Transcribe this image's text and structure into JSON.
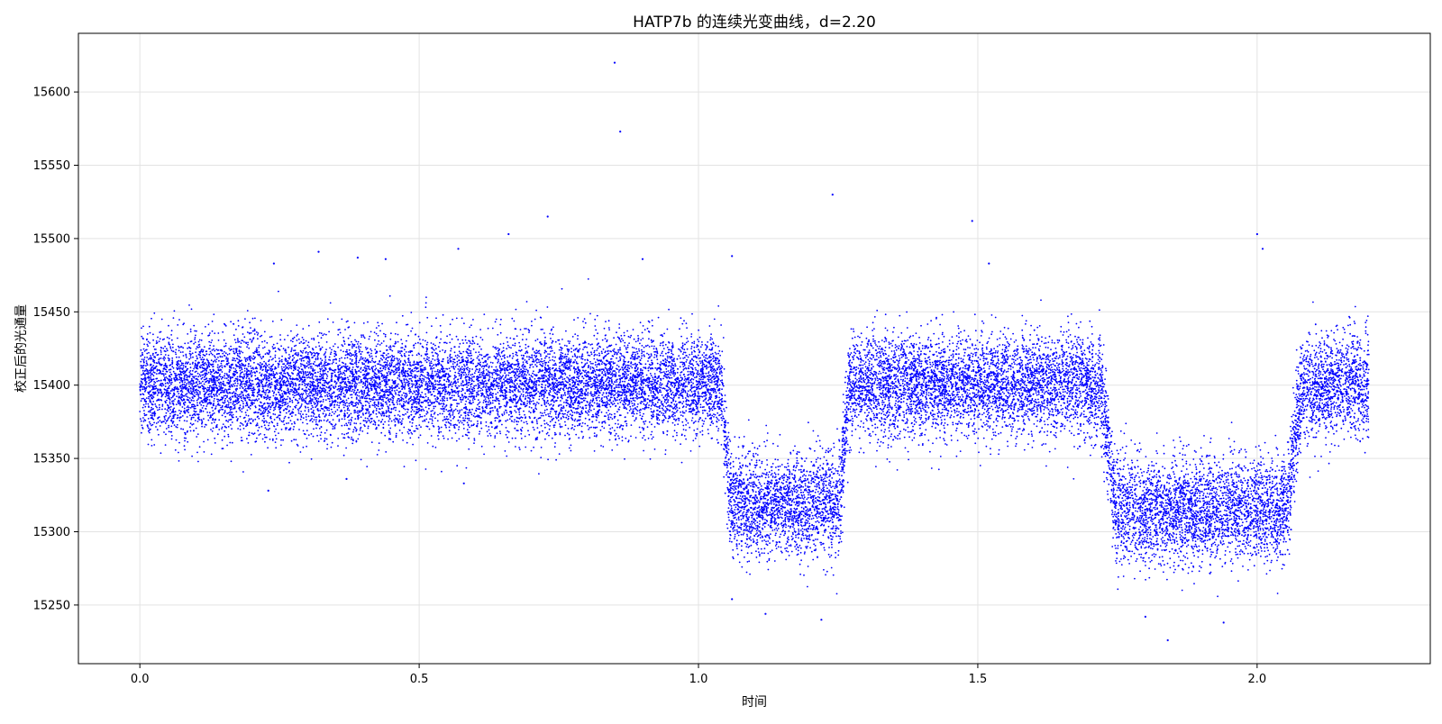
{
  "chart_data": {
    "type": "scatter",
    "title": "HATP7b 的连续光变曲线，d=2.20",
    "xlabel": "时间",
    "ylabel": "校正后的光通量",
    "xlim": [
      -0.11,
      2.31
    ],
    "ylim": [
      15210,
      15640
    ],
    "xticks": [
      "0.0",
      "0.5",
      "1.0",
      "1.5",
      "2.0"
    ],
    "yticks": [
      "15250",
      "15300",
      "15350",
      "15400",
      "15450",
      "15500",
      "15550",
      "15600"
    ],
    "grid": true,
    "marker_color": "#0000ff",
    "series": [
      {
        "baseline_flux": 15400,
        "x_range": [
          0.0,
          2.2
        ],
        "point_count": 22000,
        "transits": [
          {
            "x_start": 1.04,
            "x_end": 1.27,
            "flux": 15310
          },
          {
            "x_start": 1.72,
            "x_end": 2.08,
            "flux": 15305
          }
        ],
        "outliers": [
          [
            0.85,
            15620
          ],
          [
            0.86,
            15573
          ],
          [
            1.24,
            15530
          ],
          [
            0.73,
            15515
          ],
          [
            1.49,
            15512
          ],
          [
            2.0,
            15503
          ],
          [
            0.66,
            15503
          ],
          [
            2.01,
            15493
          ],
          [
            0.57,
            15493
          ],
          [
            0.32,
            15491
          ],
          [
            0.24,
            15483
          ],
          [
            1.06,
            15488
          ],
          [
            1.52,
            15483
          ],
          [
            0.39,
            15487
          ],
          [
            0.44,
            15486
          ],
          [
            0.9,
            15486
          ],
          [
            1.84,
            15226
          ],
          [
            1.94,
            15238
          ],
          [
            1.22,
            15240
          ],
          [
            1.12,
            15244
          ],
          [
            1.8,
            15242
          ],
          [
            1.06,
            15254
          ],
          [
            0.23,
            15328
          ],
          [
            0.58,
            15333
          ],
          [
            0.37,
            15336
          ]
        ]
      }
    ]
  }
}
